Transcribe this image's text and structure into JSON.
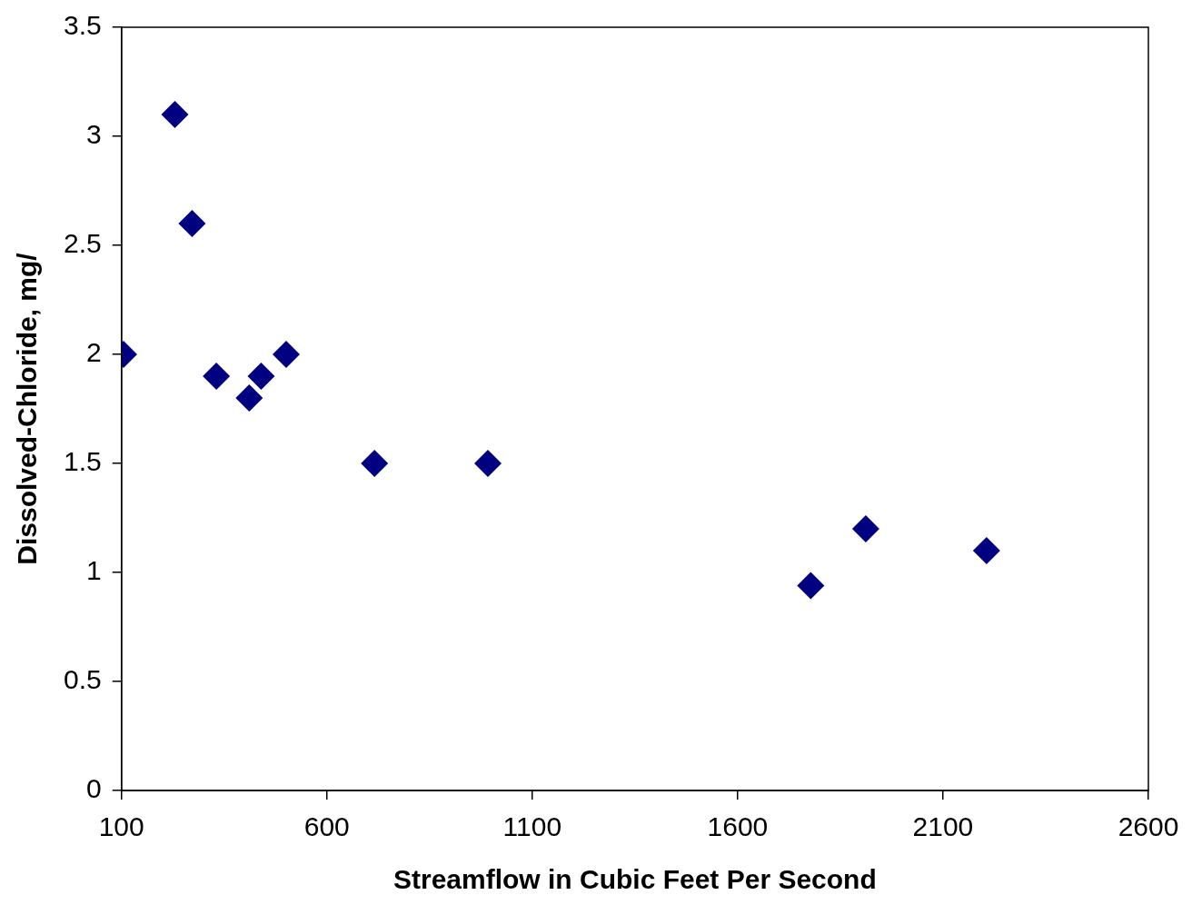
{
  "chart_data": {
    "type": "scatter",
    "xlabel": "Streamflow in Cubic Feet Per Second",
    "ylabel": "Dissolved-Chloride, mg/",
    "series": [
      {
        "color": "#000080",
        "x": [
          105,
          230,
          272,
          331,
          411,
          440,
          501,
          716,
          992,
          1778,
          1912,
          2206
        ],
        "values": [
          2.0,
          3.1,
          2.6,
          1.9,
          1.8,
          1.9,
          2.0,
          1.5,
          1.5,
          0.94,
          1.2,
          1.1
        ]
      }
    ],
    "xlim": [
      100,
      2600
    ],
    "xticks": [
      100,
      600,
      1100,
      1600,
      2100,
      2600
    ],
    "ylim": [
      0,
      3.5
    ],
    "yticks": [
      0,
      0.5,
      1,
      1.5,
      2,
      2.5,
      3,
      3.5
    ],
    "grid": false,
    "legend": false,
    "marker": "diamond"
  }
}
